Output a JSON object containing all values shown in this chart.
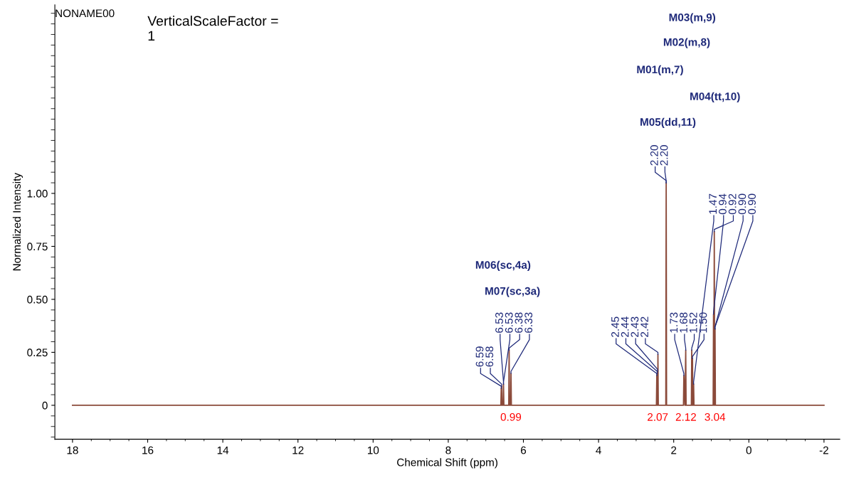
{
  "chart_data": {
    "type": "line",
    "xlabel": "Chemical Shift (ppm)",
    "ylabel": "Normalized Intensity",
    "xlim": [
      18.47,
      -2.42
    ],
    "xticks": [
      18,
      16,
      14,
      12,
      10,
      8,
      6,
      4,
      2,
      0,
      -2
    ],
    "ylim": [
      -0.16,
      1.89
    ],
    "yticks": [
      0,
      {
        "value": 0.25,
        "label": "0.25"
      },
      {
        "value": 0.5,
        "label": "0.50"
      },
      {
        "value": 0.75,
        "label": "0.75"
      },
      {
        "value": 1.0,
        "label": "1.00"
      }
    ],
    "grid": false,
    "legend": false,
    "marker": "none",
    "line_style": "solid",
    "series": [
      {
        "color": "#8b4a3a",
        "x": [
          18.0,
          6.6,
          6.59,
          6.585,
          6.58,
          6.57,
          6.54,
          6.53,
          6.52,
          6.39,
          6.38,
          6.37,
          6.34,
          6.33,
          6.32,
          2.46,
          2.45,
          2.445,
          2.44,
          2.435,
          2.43,
          2.425,
          2.42,
          2.41,
          2.21,
          2.2,
          2.19,
          1.74,
          1.73,
          1.7,
          1.68,
          1.67,
          1.53,
          1.52,
          1.51,
          1.5,
          1.49,
          1.47,
          1.46,
          0.95,
          0.94,
          0.93,
          0.92,
          0.91,
          0.9,
          0.89,
          -2.0
        ],
        "values": [
          0,
          0,
          0.08,
          0,
          0.09,
          0,
          0,
          0.1,
          0,
          0,
          0.26,
          0,
          0,
          0.15,
          0,
          0,
          0.14,
          0,
          0.15,
          0,
          0.16,
          0,
          0.24,
          0,
          0,
          1.05,
          0,
          0,
          0.14,
          0,
          0.26,
          0,
          0,
          0.26,
          0,
          0.22,
          0,
          0.1,
          0,
          0,
          0.43,
          0,
          0.82,
          0,
          0.36,
          0,
          0
        ]
      }
    ],
    "annotations": [
      "NONAME00",
      "VerticalScaleFactor =\n1",
      {
        "text": "6.59",
        "x": 6.59,
        "y": 0.08
      },
      {
        "text": "6.58",
        "x": 6.58,
        "y": 0.09
      },
      {
        "text": "6.53",
        "x": 6.53,
        "y": 0.1
      },
      {
        "text": "6.53",
        "x": 6.53,
        "y": 0.1
      },
      {
        "text": "6.38",
        "x": 6.38,
        "y": 0.26
      },
      {
        "text": "6.33",
        "x": 6.33,
        "y": 0.15
      },
      {
        "text": "2.45",
        "x": 2.45,
        "y": 0.14
      },
      {
        "text": "2.44",
        "x": 2.44,
        "y": 0.15
      },
      {
        "text": "2.43",
        "x": 2.43,
        "y": 0.16
      },
      {
        "text": "2.42",
        "x": 2.42,
        "y": 0.24
      },
      {
        "text": "2.20",
        "x": 2.2,
        "y": 1.05
      },
      {
        "text": "2.20",
        "x": 2.2,
        "y": 1.05
      },
      {
        "text": "1.73",
        "x": 1.73,
        "y": 0.14
      },
      {
        "text": "1.68",
        "x": 1.68,
        "y": 0.26
      },
      {
        "text": "1.52",
        "x": 1.52,
        "y": 0.26
      },
      {
        "text": "1.50",
        "x": 1.5,
        "y": 0.22
      },
      {
        "text": "1.47",
        "x": 1.47,
        "y": 0.1
      },
      {
        "text": "0.94",
        "x": 0.94,
        "y": 0.43
      },
      {
        "text": "0.92",
        "x": 0.92,
        "y": 0.82
      },
      {
        "text": "0.90",
        "x": 0.9,
        "y": 0.36
      },
      {
        "text": "0.90",
        "x": 0.9,
        "y": 0.36
      },
      "M03(m,9)",
      "M02(m,8)",
      "M01(m,7)",
      "M04(tt,10)",
      "M05(dd,11)",
      "M06(sc,4a)",
      "M07(sc,3a)",
      "0.99",
      "2.07",
      "2.12",
      "3.04"
    ]
  }
}
